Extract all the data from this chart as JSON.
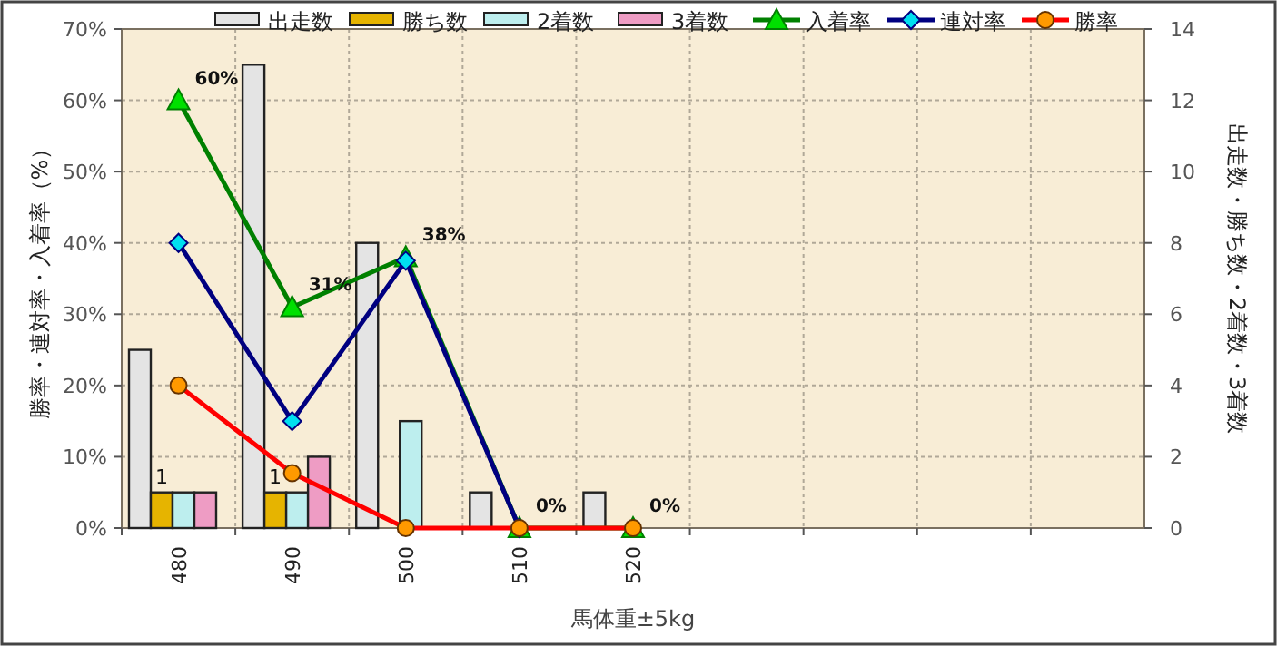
{
  "chart_data": {
    "type": "bar",
    "xlabel": "馬体重±5kg",
    "ylabel": "勝率・連対率・入着率（%）",
    "y2label": "出走数・勝ち数・2着数・3着数",
    "categories": [
      "480",
      "490",
      "500",
      "510",
      "520",
      null,
      null,
      null,
      null
    ],
    "series": [
      {
        "name": "出走数",
        "axis": "y2",
        "color": "#e4e4e4",
        "values": [
          5,
          13,
          8,
          1,
          1,
          null,
          null,
          null,
          null
        ]
      },
      {
        "name": "勝ち数",
        "axis": "y2",
        "color": "#e6b400",
        "values": [
          1,
          1,
          0,
          0,
          0,
          null,
          null,
          null,
          null
        ],
        "value_labels": [
          "1",
          "1",
          null,
          null,
          null,
          null,
          null,
          null,
          null
        ]
      },
      {
        "name": "2着数",
        "axis": "y2",
        "color": "#bdeeee",
        "values": [
          1,
          1,
          3,
          0,
          0,
          null,
          null,
          null,
          null
        ]
      },
      {
        "name": "3着数",
        "axis": "y2",
        "color": "#ee9cc4",
        "values": [
          1,
          2,
          0,
          0,
          0,
          null,
          null,
          null,
          null
        ]
      },
      {
        "name": "入着率",
        "type": "line",
        "color": "#008000",
        "marker": "triangle",
        "values": [
          60,
          31,
          38,
          0,
          0,
          null,
          null,
          null,
          null
        ],
        "value_labels": [
          "60%",
          "31%",
          "38%",
          "0%",
          "0%",
          null,
          null,
          null,
          null
        ]
      },
      {
        "name": "連対率",
        "type": "line",
        "color": "#000080",
        "marker": "diamond",
        "values": [
          40,
          15,
          37.5,
          0,
          null,
          null,
          null,
          null,
          null
        ]
      },
      {
        "name": "勝率",
        "type": "line",
        "color": "#ff0000",
        "marker": "circle",
        "values": [
          20,
          7.7,
          0,
          0,
          0,
          null,
          null,
          null,
          null
        ]
      }
    ],
    "ylim": [
      0,
      70
    ],
    "yticks": [
      {
        "value": 0,
        "label": "0%"
      },
      {
        "value": 10,
        "label": "10%"
      },
      {
        "value": 20,
        "label": "20%"
      },
      {
        "value": 30,
        "label": "30%"
      },
      {
        "value": 40,
        "label": "40%"
      },
      {
        "value": 50,
        "label": "50%"
      },
      {
        "value": 60,
        "label": "60%"
      },
      {
        "value": 70,
        "label": "70%"
      }
    ],
    "y2lim": [
      0,
      14
    ],
    "y2ticks": [
      0,
      2,
      4,
      6,
      8,
      10,
      12,
      14
    ],
    "grid": true,
    "legend": "top"
  }
}
